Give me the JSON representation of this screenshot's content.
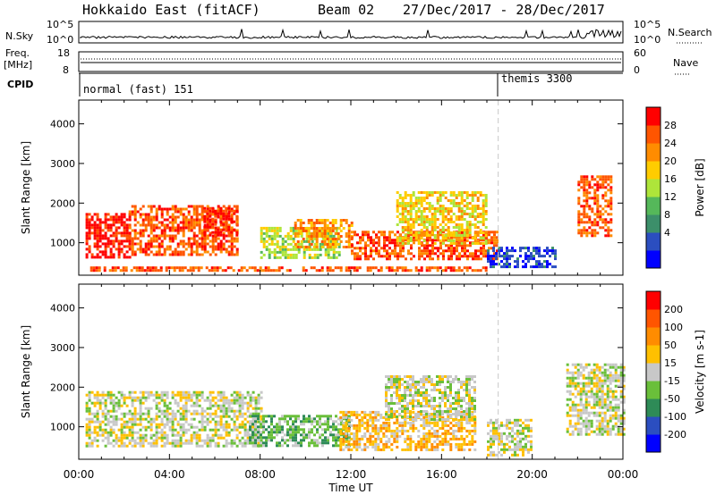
{
  "header": {
    "station": "Hokkaido East (fitACF)",
    "beam": "Beam 02",
    "dates": "27/Dec/2017 - 28/Dec/2017"
  },
  "top_panels": {
    "nsky_label": "N.Sky",
    "nsky_ticks": [
      "10^5",
      "10^0"
    ],
    "nsearch_label": "N.Search",
    "freq_label": "Freq.",
    "freq_unit": "[MHz]",
    "freq_ticks": [
      "18",
      "8"
    ],
    "nave_label": "Nave",
    "nave_ticks": [
      "60",
      "0"
    ],
    "cpid_label": "CPID",
    "cpid_segments": [
      {
        "label": "normal (fast) 151",
        "start_hour": 0
      },
      {
        "label": "themis 3300",
        "start_hour": 18.5
      }
    ]
  },
  "chart_data": [
    {
      "type": "heatmap",
      "name": "power",
      "ylabel": "Slant Range [km]",
      "ylim": [
        180,
        4600
      ],
      "yticks": [
        1000,
        2000,
        3000,
        4000
      ],
      "colorbar": {
        "label": "Power [dB]",
        "ticks": [
          "28",
          "24",
          "20",
          "16",
          "12",
          "8",
          "4"
        ],
        "colors": [
          "#0000ff",
          "#2b4ec0",
          "#3c8f6a",
          "#55b85a",
          "#aee53a",
          "#ffcc00",
          "#ff8c00",
          "#ff5500",
          "#ff0000"
        ]
      },
      "regions": [
        {
          "x": [
            0.3,
            2.2
          ],
          "y": [
            650,
            1750
          ],
          "level": 8
        },
        {
          "x": [
            2.2,
            7.0
          ],
          "y": [
            700,
            1950
          ],
          "level": 7
        },
        {
          "x": [
            5.5,
            7.0
          ],
          "y": [
            1200,
            1900
          ],
          "level": 8
        },
        {
          "x": [
            8.0,
            11.5
          ],
          "y": [
            600,
            1400
          ],
          "level": 4
        },
        {
          "x": [
            9.5,
            12.0
          ],
          "y": [
            900,
            1600
          ],
          "level": 6
        },
        {
          "x": [
            12.0,
            18.5
          ],
          "y": [
            600,
            1300
          ],
          "level": 7
        },
        {
          "x": [
            14.0,
            18.0
          ],
          "y": [
            1000,
            2300
          ],
          "level": 5
        },
        {
          "x": [
            0.5,
            18.0
          ],
          "y": [
            300,
            400
          ],
          "level": 7
        },
        {
          "x": [
            22.0,
            23.5
          ],
          "y": [
            1200,
            2700
          ],
          "level": 7
        },
        {
          "x": [
            18.0,
            21.0
          ],
          "y": [
            400,
            900
          ],
          "level": 1
        }
      ]
    },
    {
      "type": "heatmap",
      "name": "velocity",
      "ylabel": "Slant Range [km]",
      "ylim": [
        180,
        4600
      ],
      "yticks": [
        1000,
        2000,
        3000,
        4000
      ],
      "colorbar": {
        "label": "Velocity [m s-1]",
        "ticks": [
          "200",
          "100",
          "50",
          "15",
          "-15",
          "-50",
          "-100",
          "-200"
        ],
        "colors": [
          "#0000ff",
          "#2b4ec0",
          "#2e8b57",
          "#6abf3a",
          "#c8c8c8",
          "#ffc000",
          "#ff8c00",
          "#ff5500",
          "#ff0000"
        ]
      },
      "regions": [
        {
          "x": [
            0.3,
            8.0
          ],
          "y": [
            500,
            1900
          ],
          "level": 4
        },
        {
          "x": [
            7.5,
            12.0
          ],
          "y": [
            500,
            1300
          ],
          "level": 3
        },
        {
          "x": [
            11.5,
            17.5
          ],
          "y": [
            400,
            1400
          ],
          "level": 5
        },
        {
          "x": [
            13.5,
            17.5
          ],
          "y": [
            1200,
            2300
          ],
          "level": 4
        },
        {
          "x": [
            18.0,
            20.0
          ],
          "y": [
            300,
            1200
          ],
          "level": 4
        },
        {
          "x": [
            21.5,
            24.0
          ],
          "y": [
            800,
            2600
          ],
          "level": 4
        }
      ]
    }
  ],
  "xaxis": {
    "label": "Time UT",
    "ticks": [
      "00:00",
      "04:00",
      "08:00",
      "12:00",
      "16:00",
      "20:00",
      "00:00"
    ],
    "range_hours": [
      0,
      24
    ],
    "marker_hour": 18.5
  }
}
